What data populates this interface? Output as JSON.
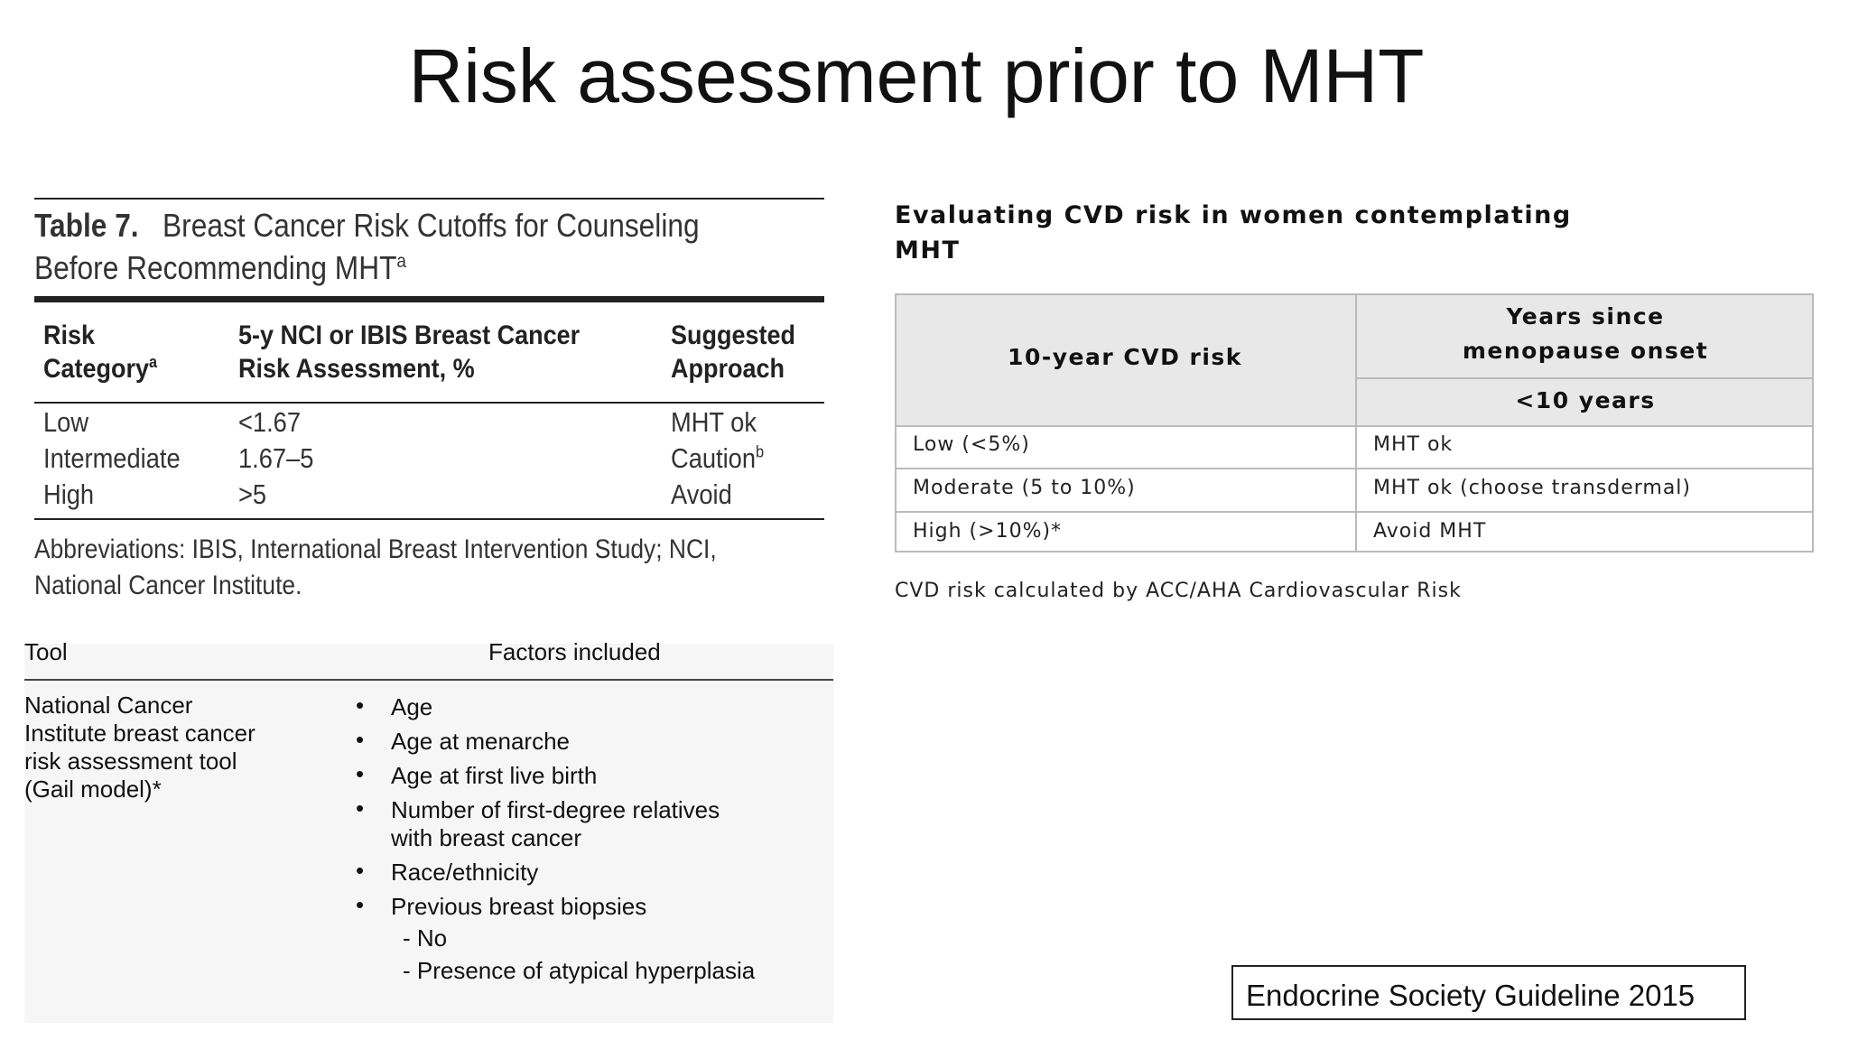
{
  "title": "Risk assessment prior to MHT",
  "table7": {
    "label": "Table 7.",
    "caption": [
      "Breast Cancer Risk Cutoffs for Counseling",
      "Before Recommending MHT"
    ],
    "caption_sup": "a",
    "headers": [
      {
        "lines": [
          "Risk",
          "Category"
        ],
        "sup": "a"
      },
      {
        "lines": [
          "5-y NCI or IBIS Breast Cancer",
          "Risk Assessment, %"
        ]
      },
      {
        "lines": [
          "Suggested",
          "Approach"
        ]
      }
    ],
    "rows": [
      [
        "Low",
        "<1.67",
        "MHT ok"
      ],
      [
        "Intermediate",
        "1.67–5",
        "Caution"
      ],
      [
        "High",
        ">5",
        "Avoid"
      ]
    ],
    "row_sups": {
      "1": "b"
    },
    "footnote": [
      "Abbreviations: IBIS, International Breast Intervention Study; NCI,",
      "National Cancer Institute."
    ]
  },
  "tools": {
    "headers": [
      "Tool",
      "Factors included"
    ],
    "tool": [
      "National Cancer",
      "Institute breast cancer",
      "risk assessment tool",
      "(Gail model)*"
    ],
    "factors": [
      {
        "text": [
          "Age"
        ]
      },
      {
        "text": [
          "Age at menarche"
        ]
      },
      {
        "text": [
          "Age at first live birth"
        ]
      },
      {
        "text": [
          "Number of first-degree relatives",
          "with breast cancer"
        ]
      },
      {
        "text": [
          "Race/ethnicity"
        ]
      },
      {
        "text": [
          "Previous breast biopsies"
        ],
        "sub": [
          "- No",
          "- Presence of atypical hyperplasia"
        ]
      }
    ]
  },
  "cvd": {
    "title": [
      "Evaluating CVD risk in women contemplating",
      "MHT"
    ],
    "header_risk": "10-year CVD risk",
    "header_years": [
      "Years since",
      "menopause onset"
    ],
    "header_sub": "<10 years",
    "rows": [
      [
        "Low (<5%)",
        "MHT ok"
      ],
      [
        "Moderate (5 to 10%)",
        "MHT ok (choose transdermal)"
      ],
      [
        "High (>10%)*",
        "Avoid MHT"
      ]
    ],
    "footnote": "CVD risk calculated by ACC/AHA Cardiovascular Risk"
  },
  "citation": "Endocrine Society Guideline 2015"
}
